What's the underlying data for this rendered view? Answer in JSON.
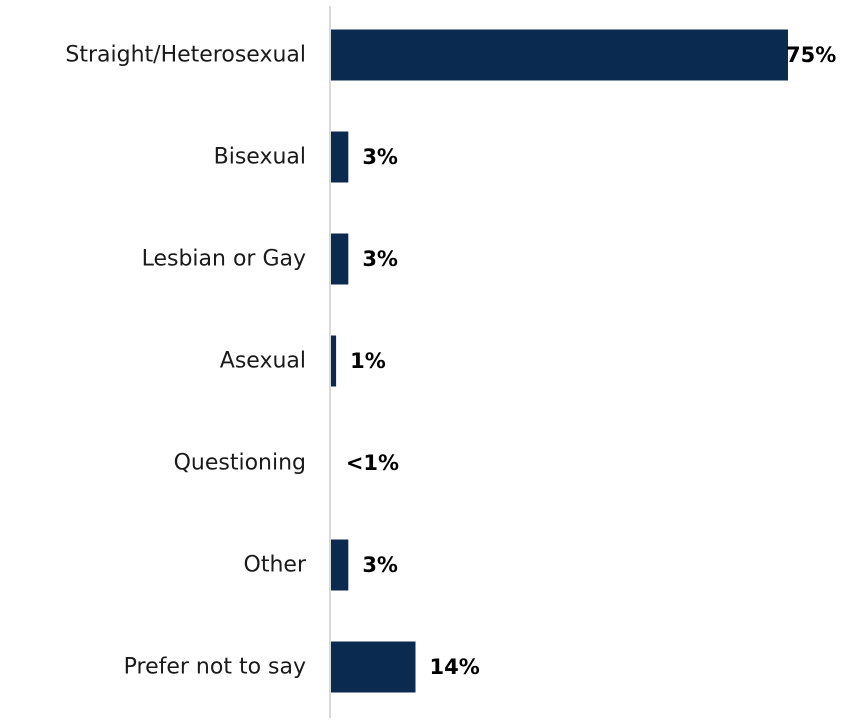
{
  "chart_data": {
    "type": "bar",
    "orientation": "horizontal",
    "title": "",
    "xlabel": "",
    "ylabel": "",
    "categories": [
      "Straight/Heterosexual",
      "Bisexual",
      "Lesbian or Gay",
      "Asexual",
      "Questioning",
      "Other",
      "Prefer not to say"
    ],
    "values": [
      75,
      3,
      3,
      1,
      0.3,
      3,
      14
    ],
    "data_labels": [
      "75%",
      "3%",
      "3%",
      "1%",
      "<1%",
      "3%",
      "14%"
    ],
    "xlim": [
      0,
      75
    ],
    "grid": false,
    "legend": "none",
    "bar_color": "#0b2a4f",
    "axis_color": "#d9d9d9"
  }
}
